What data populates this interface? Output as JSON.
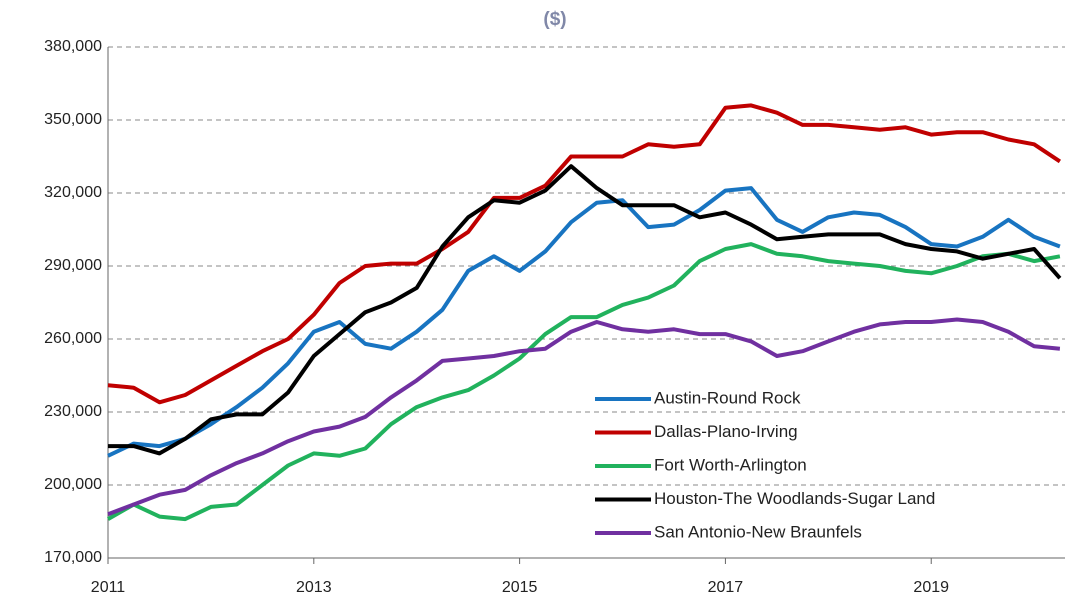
{
  "chart_data": {
    "type": "line",
    "title": "($)",
    "x": [
      2011,
      2011.25,
      2011.5,
      2011.75,
      2012,
      2012.25,
      2012.5,
      2012.75,
      2013,
      2013.25,
      2013.5,
      2013.75,
      2014,
      2014.25,
      2014.5,
      2014.75,
      2015,
      2015.25,
      2015.5,
      2015.75,
      2016,
      2016.25,
      2016.5,
      2016.75,
      2017,
      2017.25,
      2017.5,
      2017.75,
      2018,
      2018.25,
      2018.5,
      2018.75,
      2019,
      2019.25,
      2019.5,
      2019.75,
      2020,
      2020.25
    ],
    "xlim": [
      2011,
      2020.3
    ],
    "xticks": [
      2011,
      2013,
      2015,
      2017,
      2019
    ],
    "ylim": [
      170000,
      380000
    ],
    "yticks": [
      {
        "value": 170000,
        "label": "170,000"
      },
      {
        "value": 200000,
        "label": "200,000"
      },
      {
        "value": 230000,
        "label": "230,000"
      },
      {
        "value": 260000,
        "label": "260,000"
      },
      {
        "value": 290000,
        "label": "290,000"
      },
      {
        "value": 320000,
        "label": "320,000"
      },
      {
        "value": 350000,
        "label": "350,000"
      },
      {
        "value": 380000,
        "label": "380,000"
      }
    ],
    "grid": true,
    "legend": "lower right",
    "series": [
      {
        "name": "Austin-Round Rock",
        "color": "#1874c1",
        "values": [
          212000,
          217000,
          216000,
          219000,
          225000,
          232000,
          240000,
          250000,
          263000,
          267000,
          258000,
          256000,
          263000,
          272000,
          288000,
          294000,
          288000,
          296000,
          308000,
          316000,
          317000,
          306000,
          307000,
          313000,
          321000,
          322000,
          309000,
          304000,
          310000,
          312000,
          311000,
          306000,
          299000,
          298000,
          302000,
          309000,
          302000,
          298000
        ]
      },
      {
        "name": "Dallas-Plano-Irving",
        "color": "#c00000",
        "values": [
          241000,
          240000,
          234000,
          237000,
          243000,
          249000,
          255000,
          260000,
          270000,
          283000,
          290000,
          291000,
          291000,
          297000,
          304000,
          318000,
          318000,
          323000,
          335000,
          335000,
          335000,
          340000,
          339000,
          340000,
          355000,
          356000,
          353000,
          348000,
          348000,
          347000,
          346000,
          347000,
          344000,
          345000,
          345000,
          342000,
          340000,
          333000
        ]
      },
      {
        "name": "Fort Worth-Arlington",
        "color": "#21b25d",
        "values": [
          186000,
          192000,
          187000,
          186000,
          191000,
          192000,
          200000,
          208000,
          213000,
          212000,
          215000,
          225000,
          232000,
          236000,
          239000,
          245000,
          252000,
          262000,
          269000,
          269000,
          274000,
          277000,
          282000,
          292000,
          297000,
          299000,
          295000,
          294000,
          292000,
          291000,
          290000,
          288000,
          287000,
          290000,
          294000,
          295000,
          292000,
          294000
        ]
      },
      {
        "name": "Houston-The Woodlands-Sugar Land",
        "color": "#000000",
        "values": [
          216000,
          216000,
          213000,
          219000,
          227000,
          229000,
          229000,
          238000,
          253000,
          262000,
          271000,
          275000,
          281000,
          298000,
          310000,
          317000,
          316000,
          321000,
          331000,
          322000,
          315000,
          315000,
          315000,
          310000,
          312000,
          307000,
          301000,
          302000,
          303000,
          303000,
          303000,
          299000,
          297000,
          296000,
          293000,
          295000,
          297000,
          285000
        ]
      },
      {
        "name": "San Antonio-New Braunfels",
        "color": "#7030a0",
        "values": [
          188000,
          192000,
          196000,
          198000,
          204000,
          209000,
          213000,
          218000,
          222000,
          224000,
          228000,
          236000,
          243000,
          251000,
          252000,
          253000,
          255000,
          256000,
          263000,
          267000,
          264000,
          263000,
          264000,
          262000,
          262000,
          259000,
          253000,
          255000,
          259000,
          263000,
          266000,
          267000,
          267000,
          268000,
          267000,
          263000,
          257000,
          256000
        ]
      }
    ]
  }
}
